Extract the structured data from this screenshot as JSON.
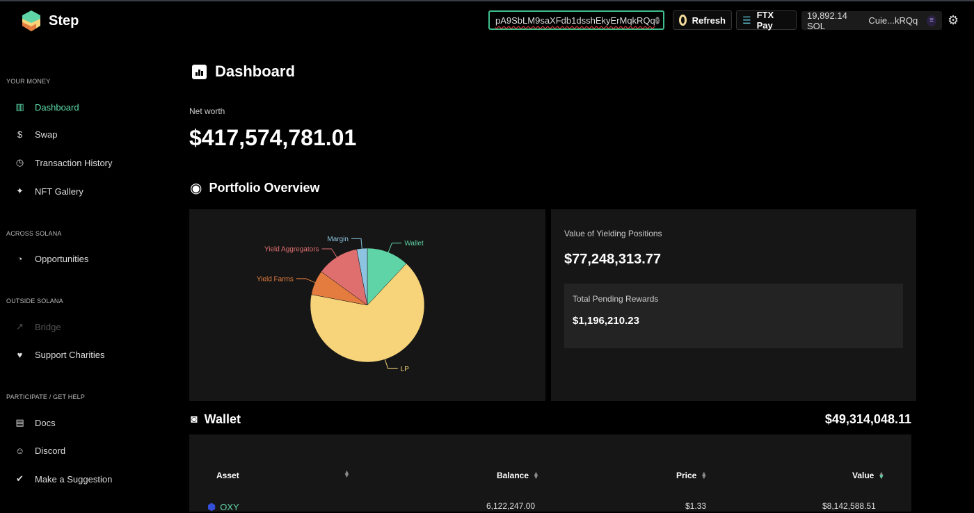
{
  "app": {
    "name": "Step"
  },
  "header": {
    "address": "pA9SbLM9saXFdb1dsshEkyErMqkRQq",
    "refresh": "Refresh",
    "ftx_pay": "FTX Pay",
    "sol_balance": "19,892.14 SOL",
    "account": "Cuie...kRQq"
  },
  "sidebar": {
    "sections": [
      "YOUR MONEY",
      "ACROSS SOLANA",
      "OUTSIDE SOLANA",
      "PARTICIPATE / GET HELP"
    ],
    "items": [
      {
        "label": "Dashboard",
        "icon": "chart-icon"
      },
      {
        "label": "Swap",
        "icon": "dollar-icon"
      },
      {
        "label": "Transaction History",
        "icon": "clock-icon"
      },
      {
        "label": "NFT Gallery",
        "icon": "sparkle-icon"
      },
      {
        "label": "Opportunities",
        "icon": "pie-icon"
      },
      {
        "label": "Bridge",
        "icon": "trend-icon"
      },
      {
        "label": "Support Charities",
        "icon": "heart-icon"
      },
      {
        "label": "Docs",
        "icon": "doc-icon"
      },
      {
        "label": "Discord",
        "icon": "discord-icon"
      },
      {
        "label": "Make a Suggestion",
        "icon": "check-icon"
      }
    ]
  },
  "main": {
    "title": "Dashboard",
    "net_worth_label": "Net worth",
    "net_worth": "$417,574,781.01",
    "portfolio_title": "Portfolio Overview",
    "yielding_label": "Value of Yielding Positions",
    "yielding_value": "$77,248,313.77",
    "pending_label": "Total Pending Rewards",
    "pending_value": "$1,196,210.23",
    "wallet_title": "Wallet",
    "wallet_total": "$49,314,048.11",
    "table": {
      "headers": [
        "Asset",
        "Balance",
        "Price",
        "Value"
      ],
      "rows": [
        {
          "asset": "OXY",
          "balance": "6,122,247.00",
          "price": "$1.33",
          "value": "$8,142,588.51"
        }
      ]
    }
  },
  "chart_data": {
    "type": "pie",
    "slices": [
      {
        "name": "Wallet",
        "value": 12,
        "color": "#5fd4a6"
      },
      {
        "name": "LP",
        "value": 66,
        "color": "#f7d37a"
      },
      {
        "name": "Yield Farms",
        "value": 7,
        "color": "#e47c3f"
      },
      {
        "name": "Yield Aggregators",
        "value": 12,
        "color": "#df6e6e"
      },
      {
        "name": "Margin",
        "value": 3,
        "color": "#8cc3e0"
      }
    ]
  }
}
